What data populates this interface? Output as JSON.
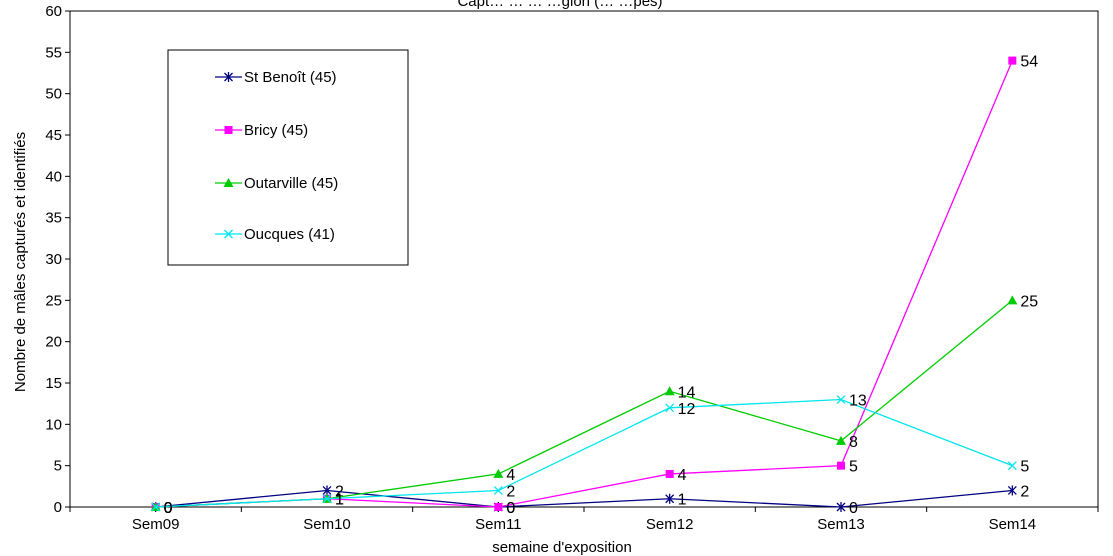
{
  "chart_data": {
    "type": "line",
    "title": "Capt… … … …gion (… …pes)",
    "xlabel": "semaine d'exposition",
    "ylabel": "Nombre de mâles capturés et identifiés",
    "ylim": [
      0,
      60
    ],
    "y_ticks": [
      "0",
      "5",
      "10",
      "15",
      "20",
      "25",
      "30",
      "35",
      "40",
      "45",
      "50",
      "55",
      "60"
    ],
    "categories": [
      "Sem09",
      "Sem10",
      "Sem11",
      "Sem12",
      "Sem13",
      "Sem14"
    ],
    "legend_position": "top-left",
    "grid": false,
    "series": [
      {
        "name": "St Benoît (45)",
        "color": "#000080",
        "marker": "asterisk",
        "values": [
          0,
          2,
          0,
          1,
          0,
          2
        ]
      },
      {
        "name": "Bricy (45)",
        "color": "#ff00ff",
        "marker": "square",
        "values": [
          0,
          1,
          0,
          4,
          5,
          54
        ]
      },
      {
        "name": "Outarville (45)",
        "color": "#00cc00",
        "marker": "triangle",
        "values": [
          0,
          1,
          4,
          14,
          8,
          25
        ]
      },
      {
        "name": "Oucques (41)",
        "color": "#00e5ee",
        "marker": "x",
        "values": [
          0,
          1,
          2,
          12,
          13,
          5
        ]
      }
    ]
  }
}
